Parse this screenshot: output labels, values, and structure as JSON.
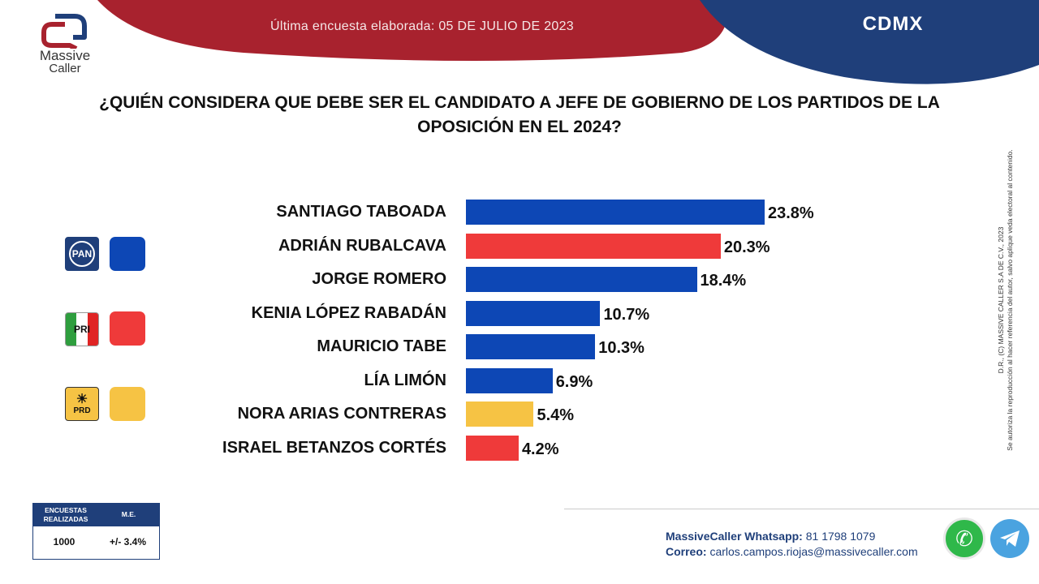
{
  "brand": {
    "name": "Massive",
    "sub": "Caller"
  },
  "header": {
    "survey_date": "Última encuesta elaborada: 05 DE JULIO DE 2023",
    "region": "CDMX"
  },
  "question": {
    "line1": "¿QUIÉN CONSIDERA QUE DEBE SER EL CANDIDATO A JEFE DE GOBIERNO DE LOS PARTIDOS DE  LA",
    "line2": "OPOSICIÓN EN EL 2024?"
  },
  "colors": {
    "pan_blue": "#0d47b5",
    "pri_red": "#ef3a3a",
    "prd_yellow": "#f6c344",
    "navy": "#1f3f7a",
    "header_red": "#a8222e"
  },
  "chart_data": {
    "type": "bar",
    "orientation": "horizontal",
    "categories": [
      "SANTIAGO TABOADA",
      "ADRIÁN RUBALCAVA",
      "JORGE ROMERO",
      "KENIA LÓPEZ RABADÁN",
      "MAURICIO TABE",
      "LÍA LIMÓN",
      "NORA ARIAS CONTRERAS",
      "ISRAEL BETANZOS CORTÉS"
    ],
    "values": [
      23.8,
      20.3,
      18.4,
      10.7,
      10.3,
      6.9,
      5.4,
      4.2
    ],
    "value_labels": [
      "23.8%",
      "20.3%",
      "18.4%",
      "10.7%",
      "10.3%",
      "6.9%",
      "5.4%",
      "4.2%"
    ],
    "bar_colors": [
      "#0d47b5",
      "#ef3a3a",
      "#0d47b5",
      "#0d47b5",
      "#0d47b5",
      "#0d47b5",
      "#f6c344",
      "#ef3a3a"
    ],
    "title": "¿QUIÉN CONSIDERA QUE DEBE SER EL CANDIDATO A JEFE DE GOBIERNO DE LOS PARTIDOS DE  LA OPOSICIÓN EN EL 2024?",
    "xlim": [
      0,
      25
    ],
    "grid": false
  },
  "legend": [
    {
      "party": "PAN",
      "color": "#0d47b5"
    },
    {
      "party": "PRI",
      "color": "#ef3a3a"
    },
    {
      "party": "PRD",
      "color": "#f6c344"
    }
  ],
  "side_note": {
    "line1": "D.R., (C) MASSIVE CALLER S.A DE C.V., 2023",
    "line2": "Se autoriza la reproducción al hacer referencia del autor, salvo aplique veda electoral al contenido."
  },
  "stats": {
    "col1_line1": "ENCUESTAS",
    "col1_line2": "REALIZADAS",
    "col2": "M.E.",
    "surveys": "1000",
    "margin": "+/- 3.4%"
  },
  "contact": {
    "whatsapp_label": "MassiveCaller Whatsapp:",
    "whatsapp_number": "81 1798 1079",
    "email_label": "Correo:",
    "email": "carlos.campos.riojas@massivecaller.com"
  }
}
